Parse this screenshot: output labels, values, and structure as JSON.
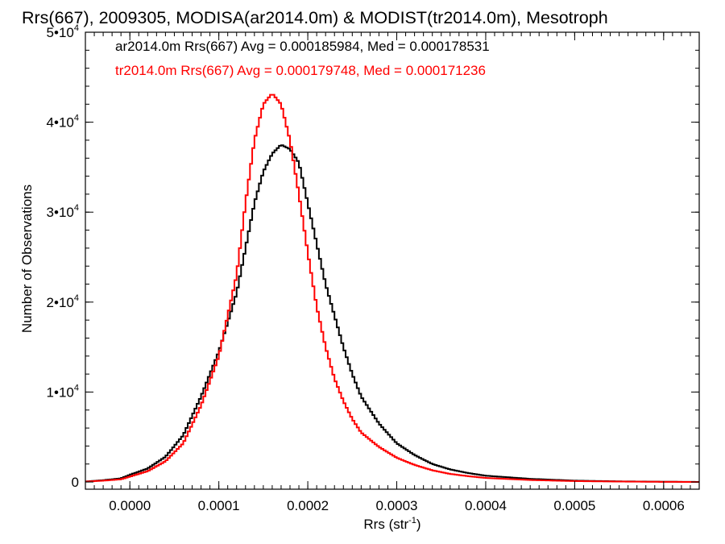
{
  "chart_data": {
    "type": "line",
    "title": "Rrs(667), 2009305, MODISA(ar2014.0m) & MODIST(tr2014.0m), Mesotroph",
    "xlabel_base": "Rrs (str",
    "xlabel_sup": "-1",
    "xlabel_close": ")",
    "ylabel": "Number of Observations",
    "xlim": [
      -5e-05,
      0.00064
    ],
    "ylim": [
      -800,
      50000
    ],
    "x_ticks": [
      0.0,
      0.0001,
      0.0002,
      0.0003,
      0.0004,
      0.0005,
      0.0006
    ],
    "x_tick_labels": [
      "0.0000",
      "0.0001",
      "0.0002",
      "0.0003",
      "0.0004",
      "0.0005",
      "0.0006"
    ],
    "y_ticks": [
      {
        "value": 0,
        "mant": "0",
        "exp": ""
      },
      {
        "value": 10000,
        "mant": "1•10",
        "exp": "4"
      },
      {
        "value": 20000,
        "mant": "2•10",
        "exp": "4"
      },
      {
        "value": 30000,
        "mant": "3•10",
        "exp": "4"
      },
      {
        "value": 40000,
        "mant": "4•10",
        "exp": "4"
      },
      {
        "value": 50000,
        "mant": "5•10",
        "exp": "4"
      }
    ],
    "annotations": [
      {
        "text": "ar2014.0m Rrs(667) Avg = 0.000185984, Med = 0.000178531",
        "color": "#000000"
      },
      {
        "text": "tr2014.0m Rrs(667) Avg = 0.000179748, Med = 0.000171236",
        "color": "#ff0000"
      }
    ],
    "series": [
      {
        "color": "#000000",
        "x": [
          -5e-05,
          -3e-05,
          -1e-05,
          0.0,
          2e-05,
          4e-05,
          6e-05,
          8e-05,
          0.0001,
          0.00012,
          0.00013,
          0.00014,
          0.00015,
          0.00016,
          0.00017,
          0.00018,
          0.00019,
          0.0002,
          0.00021,
          0.00022,
          0.00023,
          0.00024,
          0.00025,
          0.00026,
          0.00028,
          0.0003,
          0.00032,
          0.00034,
          0.00036,
          0.00038,
          0.0004,
          0.00045,
          0.0005,
          0.00055,
          0.0006,
          0.00064
        ],
        "y": [
          50,
          200,
          400,
          800,
          1500,
          2800,
          5200,
          9500,
          14500,
          21000,
          26000,
          31000,
          34500,
          36500,
          37500,
          37000,
          35500,
          31000,
          26500,
          22000,
          18500,
          15000,
          12000,
          9500,
          6500,
          4300,
          3000,
          2000,
          1400,
          1000,
          700,
          350,
          150,
          70,
          30,
          10
        ]
      },
      {
        "color": "#ff0000",
        "x": [
          -5e-05,
          -3e-05,
          -1e-05,
          0.0,
          2e-05,
          4e-05,
          6e-05,
          8e-05,
          0.0001,
          0.00012,
          0.00013,
          0.00014,
          0.00015,
          0.00016,
          0.00017,
          0.00018,
          0.00019,
          0.0002,
          0.00021,
          0.00022,
          0.00023,
          0.00024,
          0.00025,
          0.00026,
          0.00028,
          0.0003,
          0.00032,
          0.00034,
          0.00036,
          0.00038,
          0.0004,
          0.00045,
          0.0005,
          0.00055,
          0.0006,
          0.00064
        ],
        "y": [
          40,
          150,
          300,
          600,
          1200,
          2300,
          4300,
          8500,
          14000,
          23000,
          31000,
          38000,
          42000,
          43200,
          42000,
          38000,
          32000,
          25500,
          19500,
          15000,
          11500,
          9000,
          7000,
          5500,
          3900,
          2700,
          1900,
          1300,
          900,
          650,
          450,
          220,
          100,
          50,
          20,
          5
        ]
      }
    ]
  }
}
